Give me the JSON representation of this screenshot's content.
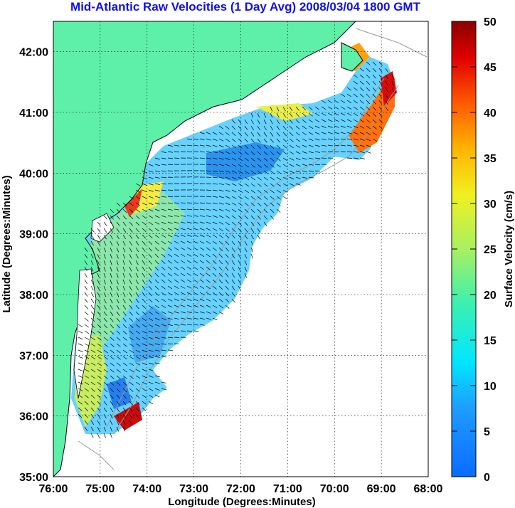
{
  "title": "Mid-Atlantic Raw Velocities (1 Day Avg) 2008/03/04 1800 GMT",
  "map": {
    "xlabel": "Longitude (Degrees:Minutes)",
    "ylabel": "Latitude (Degrees:Minutes)",
    "lon_ticks": [
      "76:00",
      "75:00",
      "74:00",
      "73:00",
      "72:00",
      "71:00",
      "70:00",
      "69:00",
      "68:00"
    ],
    "lat_ticks": [
      "42:00",
      "41:00",
      "40:00",
      "39:00",
      "38:00",
      "37:00",
      "36:00",
      "35:00"
    ],
    "lon_range": [
      -76,
      -68
    ],
    "lat_range": [
      35,
      42.5
    ],
    "grid": true
  },
  "colorbar": {
    "label": "Surface Velocity (cm/s)",
    "ticks": [
      "50",
      "45",
      "40",
      "35",
      "30",
      "25",
      "20",
      "15",
      "10",
      "5",
      "0"
    ],
    "range": [
      0,
      50
    ]
  },
  "colors": {
    "land": "#5ef0a8",
    "title": "#1010ee",
    "ocean": "#ffffff"
  }
}
